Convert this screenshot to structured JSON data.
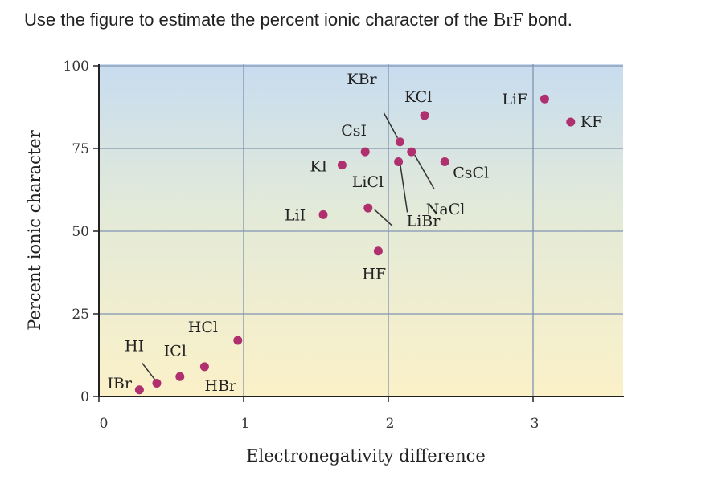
{
  "question": {
    "prefix": "Use the figure to estimate the percent ionic character of the ",
    "formula": "BrF",
    "suffix": " bond."
  },
  "colors": {
    "point": "#b0306f",
    "grid": "#7f93b3",
    "axis": "#222222",
    "background_top": "#c7dcef",
    "background_bottom": "#fbf1c8"
  },
  "chart_data": {
    "type": "scatter",
    "title": "",
    "xlabel": "Electronegativity difference",
    "ylabel": "Percent ionic character",
    "xlim": [
      0,
      3.5
    ],
    "ylim": [
      0,
      100
    ],
    "xticks": [
      0,
      1,
      2,
      3
    ],
    "yticks": [
      0,
      25,
      50,
      75,
      100
    ],
    "grid": true,
    "points": [
      {
        "label": "IBr",
        "x": 0.28,
        "y": 2
      },
      {
        "label": "HI",
        "x": 0.4,
        "y": 4
      },
      {
        "label": "ICl",
        "x": 0.56,
        "y": 6
      },
      {
        "label": "HBr",
        "x": 0.73,
        "y": 9
      },
      {
        "label": "HCl",
        "x": 0.96,
        "y": 17
      },
      {
        "label": "LiI",
        "x": 1.55,
        "y": 55
      },
      {
        "label": "KI",
        "x": 1.68,
        "y": 70
      },
      {
        "label": "CsI",
        "x": 1.84,
        "y": 74
      },
      {
        "label": "LiCl",
        "x": 1.86,
        "y": 57
      },
      {
        "label": "HF",
        "x": 1.93,
        "y": 44
      },
      {
        "label": "KBr",
        "x": 2.08,
        "y": 77
      },
      {
        "label": "LiBr",
        "x": 2.07,
        "y": 71
      },
      {
        "label": "NaCl",
        "x": 2.16,
        "y": 74
      },
      {
        "label": "KCl",
        "x": 2.25,
        "y": 85
      },
      {
        "label": "CsCl",
        "x": 2.39,
        "y": 71
      },
      {
        "label": "LiF",
        "x": 3.08,
        "y": 90
      },
      {
        "label": "KF",
        "x": 3.26,
        "y": 83
      }
    ]
  }
}
